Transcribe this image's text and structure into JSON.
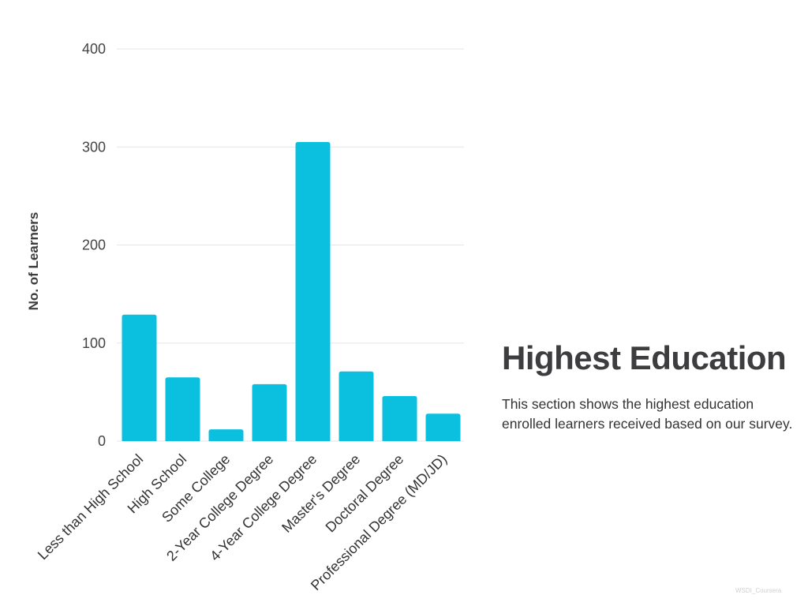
{
  "chart_data": {
    "type": "bar",
    "categories": [
      "Less than High School",
      "High School",
      "Some College",
      "2-Year College Degree",
      "4-Year College Degree",
      "Master's Degree",
      "Doctoral Degree",
      "Professional Degree (MD/JD)"
    ],
    "values": [
      129,
      65,
      12,
      58,
      305,
      71,
      46,
      28
    ],
    "ylabel": "No. of Learners",
    "xlabel": "",
    "ylim": [
      0,
      400
    ],
    "yticks": [
      0,
      100,
      200,
      300,
      400
    ],
    "grid": true,
    "bar_color": "#0bc0df"
  },
  "panel": {
    "title": "Highest Education",
    "description": "This section shows the highest education enrolled learners received based on our survey."
  },
  "watermark": "WSDI_Coursera"
}
